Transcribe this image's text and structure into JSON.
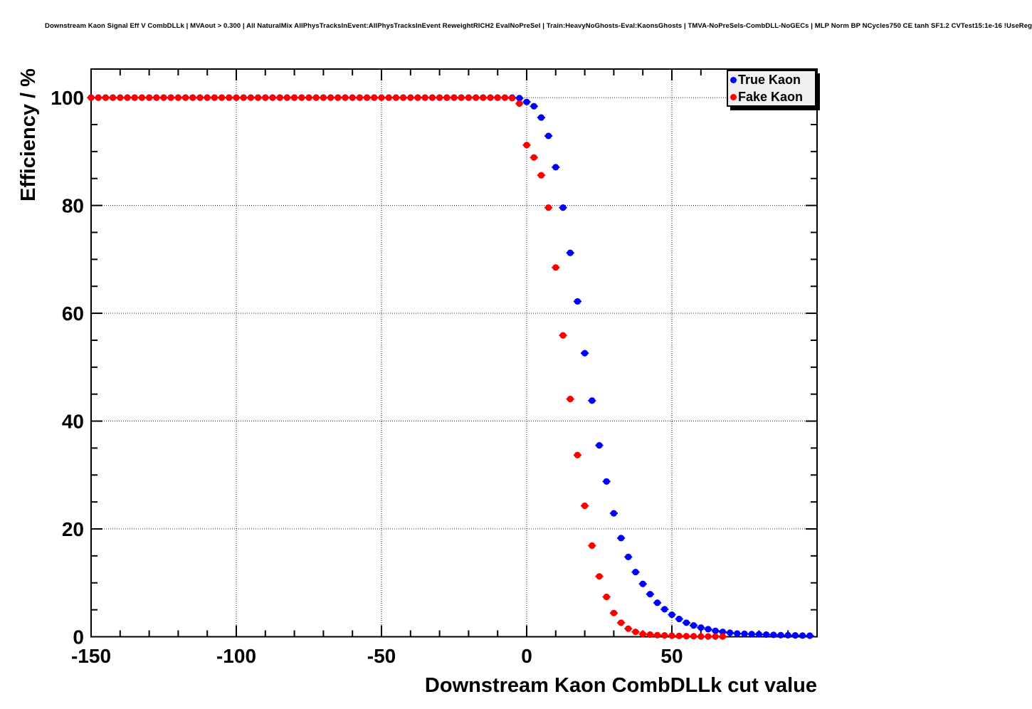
{
  "header": {
    "title": "Downstream Kaon Signal Eff V CombDLLk | MVAout > 0.300 | All NaturalMix AllPhysTracksInEvent:AllPhysTracksInEvent ReweightRICH2 EvalNoPreSel | Train:HeavyNoGhosts-Eval:KaonsGhosts | TMVA-NoPreSels-CombDLL-NoGECs | MLP Norm BP NCycles750 CE tanh SF1.2 CVTest15:1e-16 !UseReg"
  },
  "chart_data": {
    "type": "scatter",
    "title": "Downstream Kaon Signal Eff V CombDLLk",
    "xlabel": "Downstream Kaon CombDLLk cut value",
    "ylabel": "Efficiency / %",
    "xlim": [
      -150,
      100
    ],
    "ylim": [
      0,
      105.3
    ],
    "grid": true,
    "grid_style": "dotted",
    "legend_position": "top-right",
    "legend_bg_color": "#f0f0f0",
    "x_ticks": [
      {
        "value": -150,
        "label": "-150"
      },
      {
        "value": -100,
        "label": "-100"
      },
      {
        "value": -50,
        "label": "-50"
      },
      {
        "value": 0,
        "label": "0"
      },
      {
        "value": 50,
        "label": "50"
      }
    ],
    "y_ticks": [
      {
        "value": 0,
        "label": "0"
      },
      {
        "value": 20,
        "label": "20"
      },
      {
        "value": 40,
        "label": "40"
      },
      {
        "value": 60,
        "label": "60"
      },
      {
        "value": 80,
        "label": "80"
      },
      {
        "value": 100,
        "label": "100"
      }
    ],
    "x_minor_step": 10,
    "y_minor_step": 5,
    "series": [
      {
        "name": "True Kaon",
        "slug": "true-kaon",
        "color": "#0000ff",
        "marker": "filled-circle",
        "x_start": -150,
        "x_step": 2.5,
        "y": [
          100,
          100,
          100,
          100,
          100,
          100,
          100,
          100,
          100,
          100,
          100,
          100,
          100,
          100,
          100,
          100,
          100,
          100,
          100,
          100,
          100,
          100,
          100,
          100,
          100,
          100,
          100,
          100,
          100,
          100,
          100,
          100,
          100,
          100,
          100,
          100,
          100,
          100,
          100,
          100,
          100,
          100,
          100,
          100,
          100,
          100,
          100,
          100,
          100,
          100,
          100,
          100,
          100,
          100,
          100,
          100,
          100,
          100,
          100,
          99.9,
          99.2,
          98.4,
          96.3,
          92.9,
          87.1,
          79.6,
          71.2,
          62.2,
          52.6,
          43.8,
          35.5,
          28.8,
          22.9,
          18.3,
          14.8,
          12,
          9.8,
          7.9,
          6.3,
          5.1,
          4.1,
          3.3,
          2.6,
          2.1,
          1.7,
          1.4,
          1.1,
          0.9,
          0.75,
          0.6,
          0.55,
          0.5,
          0.45,
          0.4,
          0.35,
          0.3,
          0.28,
          0.25,
          0.22,
          0.2
        ]
      },
      {
        "name": "Fake Kaon",
        "slug": "fake-kaon",
        "color": "#ff0000",
        "marker": "filled-circle",
        "x_start": -150,
        "x_step": 2.5,
        "y": [
          100,
          100,
          100,
          100,
          100,
          100,
          100,
          100,
          100,
          100,
          100,
          100,
          100,
          100,
          100,
          100,
          100,
          100,
          100,
          100,
          100,
          100,
          100,
          100,
          100,
          100,
          100,
          100,
          100,
          100,
          100,
          100,
          100,
          100,
          100,
          100,
          100,
          100,
          100,
          100,
          100,
          100,
          100,
          100,
          100,
          100,
          100,
          100,
          100,
          100,
          100,
          100,
          100,
          100,
          100,
          100,
          100,
          100,
          99.9,
          98.9,
          91.2,
          88.9,
          85.6,
          79.6,
          68.5,
          55.9,
          44.1,
          33.7,
          24.3,
          16.9,
          11.2,
          7.4,
          4.4,
          2.6,
          1.5,
          0.9,
          0.5,
          0.4,
          0.3,
          0.25,
          0.2,
          0.15,
          0.1,
          0.1,
          0.05,
          0.05,
          0.05,
          0.05
        ]
      }
    ]
  }
}
